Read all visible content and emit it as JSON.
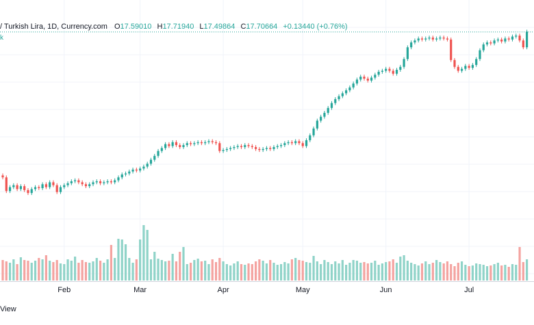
{
  "legend": {
    "title": "/ Turkish Lira, 1D, Currency.com",
    "open_label": "O",
    "open": "17.59010",
    "high_label": "H",
    "high": "17.71940",
    "low_label": "L",
    "low": "17.49864",
    "close_label": "C",
    "close": "17.70664",
    "change": "+0.13440 (+0.76%)",
    "sub": "k"
  },
  "footer": {
    "text": "View"
  },
  "colors": {
    "up": "#26a69a",
    "down": "#ef5350",
    "up_volume": "#8fd3c8",
    "down_volume": "#f4a3a0",
    "grid": "#f0f3fa",
    "last_price_line": "#26a69a"
  },
  "chart_data": {
    "type": "candlestick",
    "grid": true,
    "last_price": 17.70664,
    "ylim_price": [
      15.55,
      17.95
    ],
    "ylim_volume": [
      0,
      100
    ],
    "month_labels": [
      {
        "label": "Feb",
        "index": 17
      },
      {
        "label": "Mar",
        "index": 38
      },
      {
        "label": "Apr",
        "index": 61
      },
      {
        "label": "May",
        "index": 83
      },
      {
        "label": "Jun",
        "index": 106
      },
      {
        "label": "Jul",
        "index": 129
      }
    ],
    "closes": [
      16.22,
      16.08,
      16.12,
      16.14,
      16.1,
      16.13,
      16.09,
      16.06,
      16.1,
      16.12,
      16.11,
      16.15,
      16.12,
      16.17,
      16.14,
      16.07,
      16.12,
      16.14,
      16.16,
      16.18,
      16.19,
      16.17,
      16.15,
      16.13,
      16.15,
      16.17,
      16.18,
      16.16,
      16.17,
      16.18,
      16.17,
      16.19,
      16.22,
      16.25,
      16.26,
      16.28,
      16.3,
      16.29,
      16.31,
      16.33,
      16.36,
      16.4,
      16.44,
      16.49,
      16.52,
      16.56,
      16.54,
      16.58,
      16.55,
      16.53,
      16.55,
      16.57,
      16.56,
      16.57,
      16.58,
      16.57,
      16.58,
      16.59,
      16.58,
      16.57,
      16.49,
      16.5,
      16.51,
      16.52,
      16.53,
      16.54,
      16.53,
      16.55,
      16.54,
      16.53,
      16.51,
      16.5,
      16.51,
      16.52,
      16.51,
      16.53,
      16.54,
      16.55,
      16.57,
      16.58,
      16.57,
      16.59,
      16.57,
      16.54,
      16.6,
      16.65,
      16.72,
      16.8,
      16.84,
      16.88,
      16.93,
      16.98,
      17.02,
      17.05,
      17.08,
      17.11,
      17.14,
      17.18,
      17.22,
      17.25,
      17.23,
      17.21,
      17.24,
      17.27,
      17.3,
      17.31,
      17.33,
      17.31,
      17.28,
      17.32,
      17.35,
      17.43,
      17.55,
      17.6,
      17.62,
      17.64,
      17.63,
      17.64,
      17.65,
      17.63,
      17.64,
      17.65,
      17.64,
      17.63,
      17.42,
      17.35,
      17.31,
      17.33,
      17.36,
      17.34,
      17.37,
      17.43,
      17.52,
      17.58,
      17.6,
      17.59,
      17.62,
      17.63,
      17.61,
      17.64,
      17.63,
      17.66,
      17.67,
      17.62,
      17.55,
      17.71
    ],
    "volumes": [
      30,
      28,
      26,
      31,
      24,
      34,
      30,
      29,
      26,
      29,
      33,
      31,
      37,
      29,
      27,
      30,
      25,
      24,
      31,
      29,
      35,
      26,
      30,
      27,
      26,
      28,
      33,
      29,
      26,
      31,
      52,
      33,
      61,
      60,
      53,
      33,
      26,
      31,
      60,
      81,
      74,
      31,
      42,
      32,
      30,
      28,
      29,
      39,
      28,
      42,
      49,
      24,
      26,
      30,
      32,
      28,
      29,
      24,
      31,
      27,
      33,
      28,
      24,
      22,
      25,
      28,
      24,
      23,
      25,
      24,
      28,
      31,
      29,
      25,
      30,
      26,
      23,
      24,
      27,
      25,
      31,
      33,
      30,
      29,
      27,
      26,
      36,
      28,
      24,
      30,
      27,
      24,
      28,
      25,
      30,
      23,
      26,
      30,
      29,
      26,
      27,
      25,
      26,
      29,
      23,
      25,
      27,
      28,
      31,
      26,
      35,
      37,
      29,
      26,
      24,
      22,
      25,
      28,
      24,
      26,
      30,
      27,
      25,
      28,
      24,
      21,
      26,
      28,
      23,
      21,
      22,
      25,
      24,
      23,
      21,
      22,
      24,
      26,
      22,
      23,
      20,
      24,
      23,
      49,
      27,
      31
    ]
  }
}
